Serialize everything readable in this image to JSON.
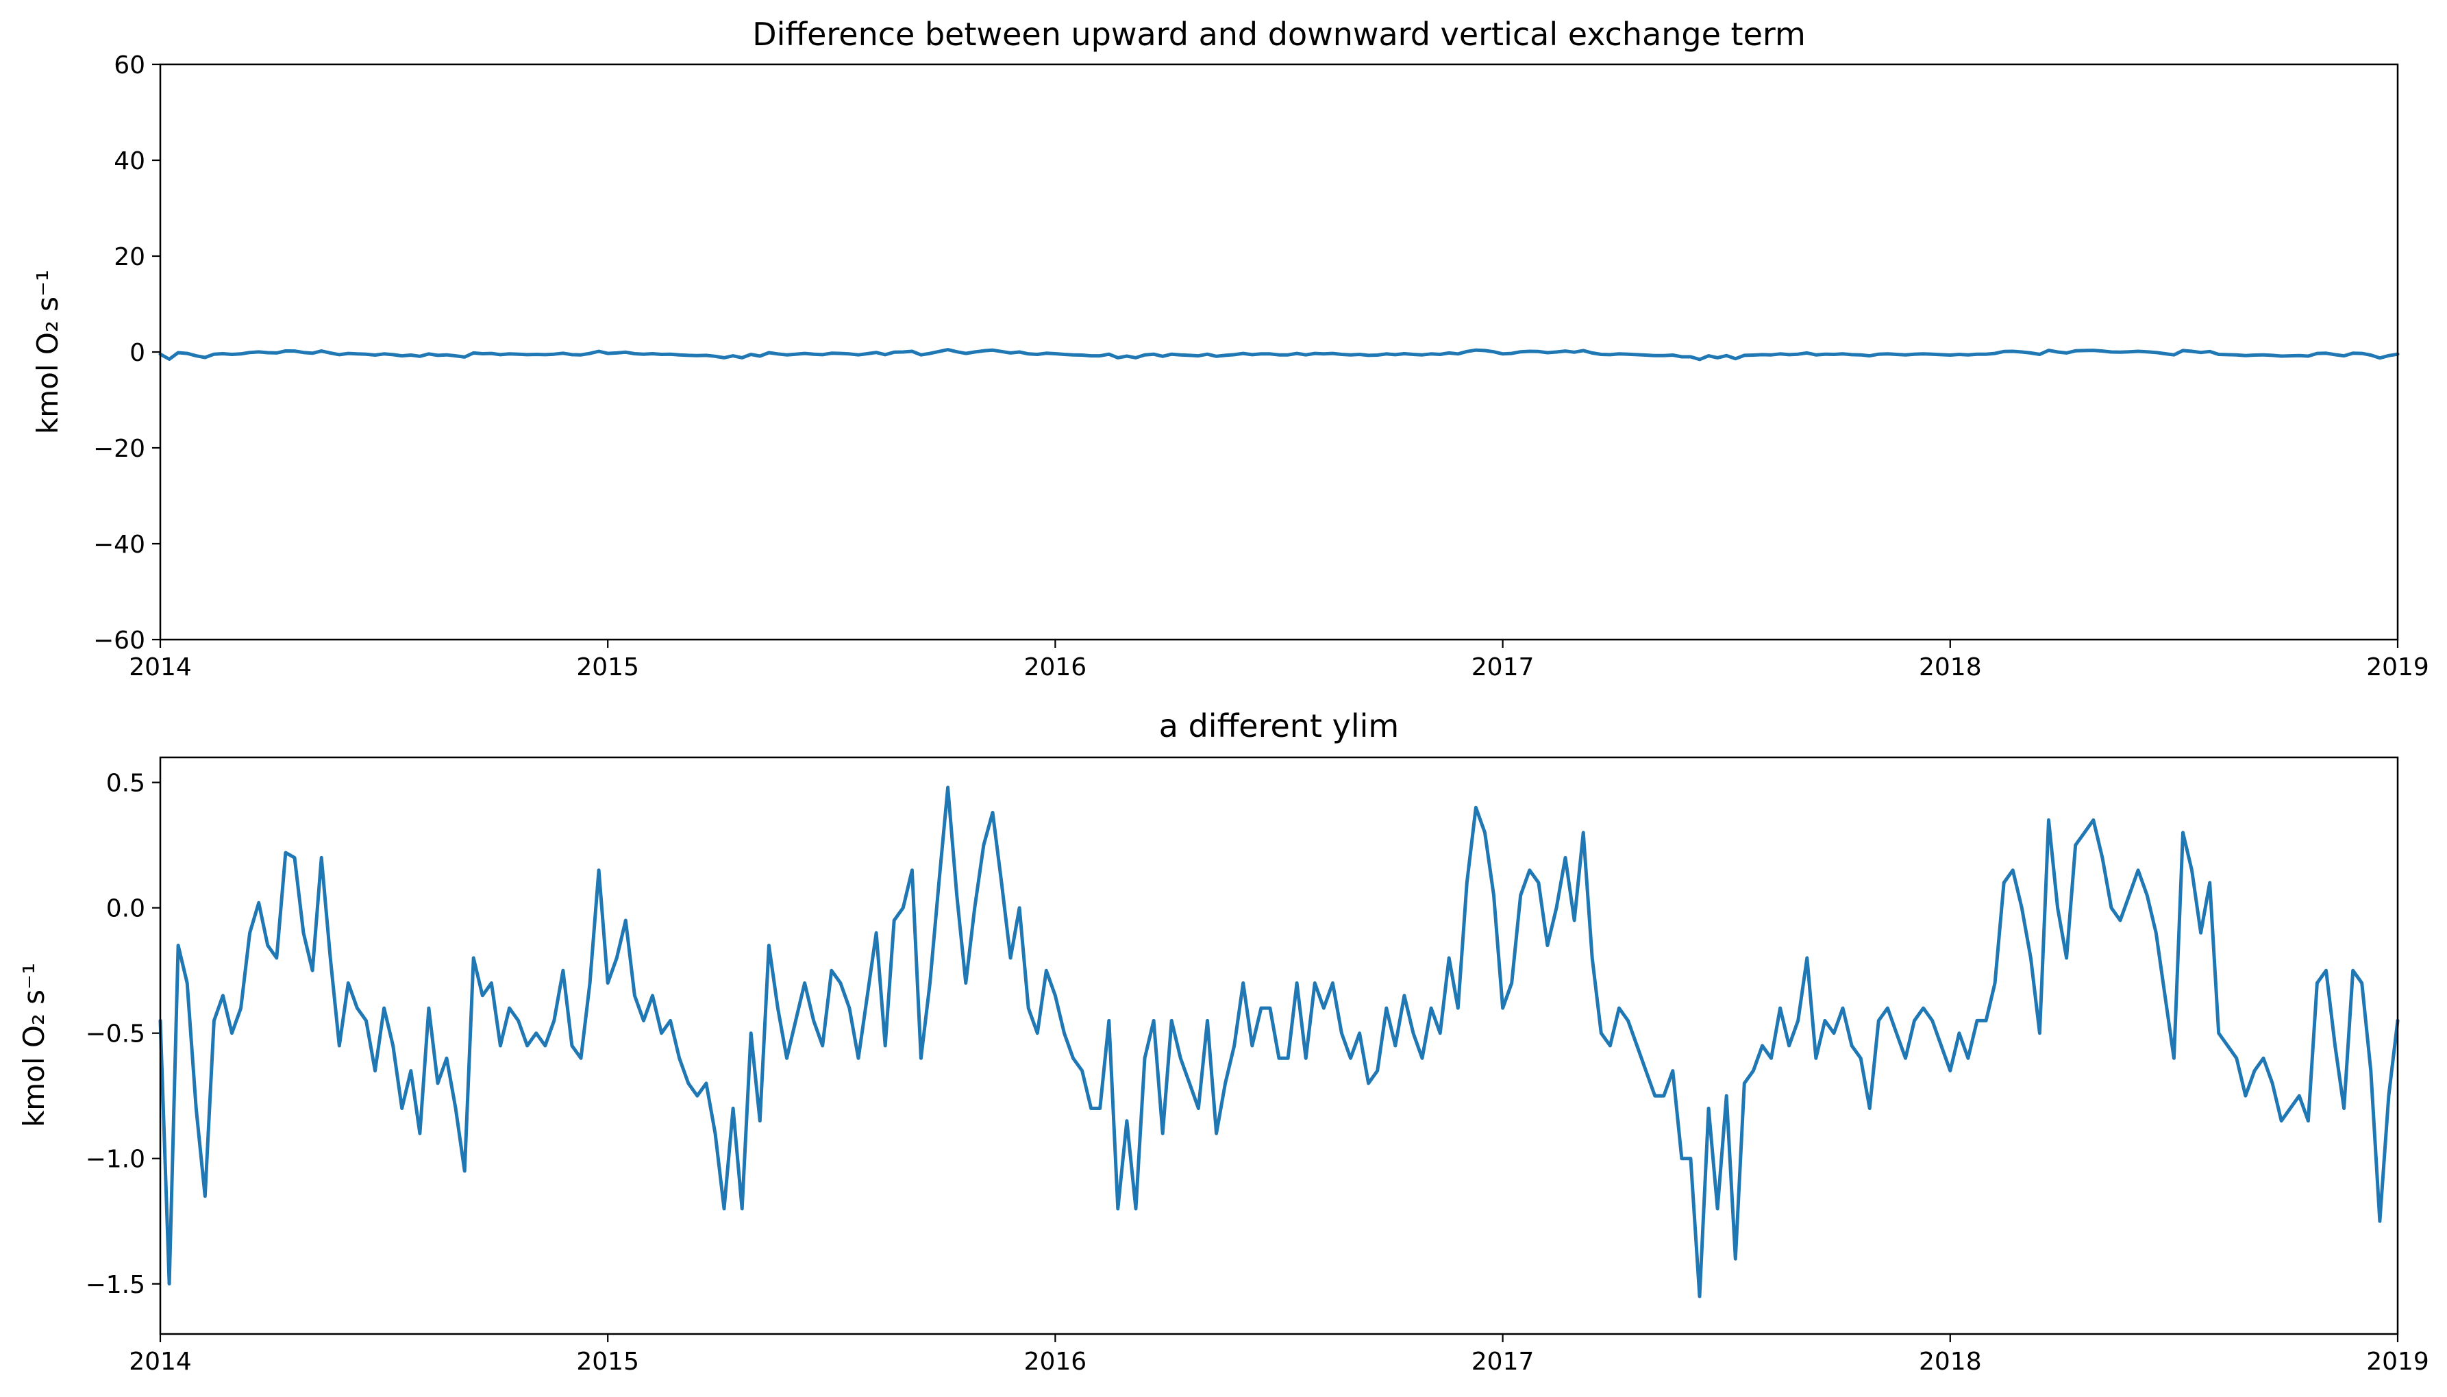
{
  "figure": {
    "panels": [
      "top_panel",
      "bottom_panel"
    ]
  },
  "chart_data": [
    {
      "type": "line",
      "title": "Difference between upward and downward vertical exchange term",
      "ylabel": "kmol O₂ s⁻¹",
      "xlabel": "",
      "xlim": [
        2014,
        2019
      ],
      "ylim": [
        -60,
        60
      ],
      "x_ticks": [
        2014,
        2015,
        2016,
        2017,
        2018,
        2019
      ],
      "x_tick_labels": [
        "2014",
        "2015",
        "2016",
        "2017",
        "2018",
        "2019"
      ],
      "y_ticks": [
        -60,
        -40,
        -20,
        0,
        20,
        40,
        60
      ],
      "y_tick_labels": [
        "−60",
        "−40",
        "−20",
        "0",
        "20",
        "40",
        "60"
      ],
      "grid": false,
      "color": "#1f77b4",
      "series_ref": "shared",
      "x": [
        2014.0,
        2014.02,
        2014.04,
        2014.06,
        2014.08,
        2014.1,
        2014.12,
        2014.14,
        2014.16,
        2014.18,
        2014.2,
        2014.22,
        2014.24,
        2014.26,
        2014.28,
        2014.3,
        2014.32,
        2014.34,
        2014.36,
        2014.38,
        2014.4,
        2014.42,
        2014.44,
        2014.46,
        2014.48,
        2014.5,
        2014.52,
        2014.54,
        2014.56,
        2014.58,
        2014.6,
        2014.62,
        2014.64,
        2014.66,
        2014.68,
        2014.7,
        2014.72,
        2014.74,
        2014.76,
        2014.78,
        2014.8,
        2014.82,
        2014.84,
        2014.86,
        2014.88,
        2014.9,
        2014.92,
        2014.94,
        2014.96,
        2014.98,
        2015.0,
        2015.02,
        2015.04,
        2015.06,
        2015.08,
        2015.1,
        2015.12,
        2015.14,
        2015.16,
        2015.18,
        2015.2,
        2015.22,
        2015.24,
        2015.26,
        2015.28,
        2015.3,
        2015.32,
        2015.34,
        2015.36,
        2015.38,
        2015.4,
        2015.42,
        2015.44,
        2015.46,
        2015.48,
        2015.5,
        2015.52,
        2015.54,
        2015.56,
        2015.58,
        2015.6,
        2015.62,
        2015.64,
        2015.66,
        2015.68,
        2015.7,
        2015.72,
        2015.74,
        2015.76,
        2015.78,
        2015.8,
        2015.82,
        2015.84,
        2015.86,
        2015.88,
        2015.9,
        2015.92,
        2015.94,
        2015.96,
        2015.98,
        2016.0,
        2016.02,
        2016.04,
        2016.06,
        2016.08,
        2016.1,
        2016.12,
        2016.14,
        2016.16,
        2016.18,
        2016.2,
        2016.22,
        2016.24,
        2016.26,
        2016.28,
        2016.3,
        2016.32,
        2016.34,
        2016.36,
        2016.38,
        2016.4,
        2016.42,
        2016.44,
        2016.46,
        2016.48,
        2016.5,
        2016.52,
        2016.54,
        2016.56,
        2016.58,
        2016.6,
        2016.62,
        2016.64,
        2016.66,
        2016.68,
        2016.7,
        2016.72,
        2016.74,
        2016.76,
        2016.78,
        2016.8,
        2016.82,
        2016.84,
        2016.86,
        2016.88,
        2016.9,
        2016.92,
        2016.94,
        2016.96,
        2016.98,
        2017.0,
        2017.02,
        2017.04,
        2017.06,
        2017.08,
        2017.1,
        2017.12,
        2017.14,
        2017.16,
        2017.18,
        2017.2,
        2017.22,
        2017.24,
        2017.26,
        2017.28,
        2017.3,
        2017.32,
        2017.34,
        2017.36,
        2017.38,
        2017.4,
        2017.42,
        2017.44,
        2017.46,
        2017.48,
        2017.5,
        2017.52,
        2017.54,
        2017.56,
        2017.58,
        2017.6,
        2017.62,
        2017.64,
        2017.66,
        2017.68,
        2017.7,
        2017.72,
        2017.74,
        2017.76,
        2017.78,
        2017.8,
        2017.82,
        2017.84,
        2017.86,
        2017.88,
        2017.9,
        2017.92,
        2017.94,
        2017.96,
        2017.98,
        2018.0,
        2018.02,
        2018.04,
        2018.06,
        2018.08,
        2018.1,
        2018.12,
        2018.14,
        2018.16,
        2018.18,
        2018.2,
        2018.22,
        2018.24,
        2018.26,
        2018.28,
        2018.3,
        2018.32,
        2018.34,
        2018.36,
        2018.38,
        2018.4,
        2018.42,
        2018.44,
        2018.46,
        2018.48,
        2018.5,
        2018.52,
        2018.54,
        2018.56,
        2018.58,
        2018.6,
        2018.62,
        2018.64,
        2018.66,
        2018.68,
        2018.7,
        2018.72,
        2018.74,
        2018.76,
        2018.78,
        2018.8,
        2018.82,
        2018.84,
        2018.86,
        2018.88,
        2018.9,
        2018.92,
        2018.94,
        2018.96,
        2018.98,
        2019.0
      ],
      "y": [
        -0.45,
        -1.5,
        -0.15,
        -0.3,
        -0.8,
        -1.15,
        -0.45,
        -0.35,
        -0.5,
        -0.4,
        -0.1,
        0.02,
        -0.15,
        -0.2,
        0.22,
        0.2,
        -0.1,
        -0.25,
        0.2,
        -0.2,
        -0.55,
        -0.3,
        -0.4,
        -0.45,
        -0.65,
        -0.4,
        -0.55,
        -0.8,
        -0.65,
        -0.9,
        -0.4,
        -0.7,
        -0.6,
        -0.8,
        -1.05,
        -0.2,
        -0.35,
        -0.3,
        -0.55,
        -0.4,
        -0.45,
        -0.55,
        -0.5,
        -0.55,
        -0.45,
        -0.25,
        -0.55,
        -0.6,
        -0.3,
        0.15,
        -0.3,
        -0.2,
        -0.05,
        -0.35,
        -0.45,
        -0.35,
        -0.5,
        -0.45,
        -0.6,
        -0.7,
        -0.75,
        -0.7,
        -0.9,
        -1.2,
        -0.8,
        -1.2,
        -0.5,
        -0.85,
        -0.15,
        -0.4,
        -0.6,
        -0.45,
        -0.3,
        -0.45,
        -0.55,
        -0.25,
        -0.3,
        -0.4,
        -0.6,
        -0.35,
        -0.1,
        -0.55,
        -0.05,
        0.0,
        0.15,
        -0.6,
        -0.3,
        0.1,
        0.48,
        0.05,
        -0.3,
        0.0,
        0.25,
        0.38,
        0.1,
        -0.2,
        0.0,
        -0.4,
        -0.5,
        -0.25,
        -0.35,
        -0.5,
        -0.6,
        -0.65,
        -0.8,
        -0.8,
        -0.45,
        -1.2,
        -0.85,
        -1.2,
        -0.6,
        -0.45,
        -0.9,
        -0.45,
        -0.6,
        -0.7,
        -0.8,
        -0.45,
        -0.9,
        -0.7,
        -0.55,
        -0.3,
        -0.55,
        -0.4,
        -0.4,
        -0.6,
        -0.6,
        -0.3,
        -0.6,
        -0.3,
        -0.4,
        -0.3,
        -0.5,
        -0.6,
        -0.5,
        -0.7,
        -0.65,
        -0.4,
        -0.55,
        -0.35,
        -0.5,
        -0.6,
        -0.4,
        -0.5,
        -0.2,
        -0.4,
        0.1,
        0.4,
        0.3,
        0.05,
        -0.4,
        -0.3,
        0.05,
        0.15,
        0.1,
        -0.15,
        0.0,
        0.2,
        -0.05,
        0.3,
        -0.2,
        -0.5,
        -0.55,
        -0.4,
        -0.45,
        -0.55,
        -0.65,
        -0.75,
        -0.75,
        -0.65,
        -1.0,
        -1.0,
        -1.55,
        -0.8,
        -1.2,
        -0.75,
        -1.4,
        -0.7,
        -0.65,
        -0.55,
        -0.6,
        -0.4,
        -0.55,
        -0.45,
        -0.2,
        -0.6,
        -0.45,
        -0.5,
        -0.4,
        -0.55,
        -0.6,
        -0.8,
        -0.45,
        -0.4,
        -0.5,
        -0.6,
        -0.45,
        -0.4,
        -0.45,
        -0.55,
        -0.65,
        -0.5,
        -0.6,
        -0.45,
        -0.45,
        -0.3,
        0.1,
        0.15,
        0.0,
        -0.2,
        -0.5,
        0.35,
        0.0,
        -0.2,
        0.25,
        0.3,
        0.35,
        0.2,
        0.0,
        -0.05,
        0.05,
        0.15,
        0.05,
        -0.1,
        -0.35,
        -0.6,
        0.3,
        0.15,
        -0.1,
        0.1,
        -0.5,
        -0.55,
        -0.6,
        -0.75,
        -0.65,
        -0.6,
        -0.7,
        -0.85,
        -0.8,
        -0.75,
        -0.85,
        -0.3,
        -0.25,
        -0.55,
        -0.8,
        -0.25,
        -0.3,
        -0.65,
        -1.25,
        -0.75,
        -0.45
      ]
    },
    {
      "type": "line",
      "title": "a different ylim",
      "ylabel": "kmol O₂ s⁻¹",
      "xlabel": "",
      "xlim": [
        2014,
        2019
      ],
      "ylim": [
        -1.7,
        0.6
      ],
      "x_ticks": [
        2014,
        2015,
        2016,
        2017,
        2018,
        2019
      ],
      "x_tick_labels": [
        "2014",
        "2015",
        "2016",
        "2017",
        "2018",
        "2019"
      ],
      "y_ticks": [
        -1.5,
        -1.0,
        -0.5,
        0.0,
        0.5
      ],
      "y_tick_labels": [
        "−1.5",
        "−1.0",
        "−0.5",
        "0.0",
        "0.5"
      ],
      "grid": false,
      "color": "#1f77b4",
      "series_ref": "shared"
    }
  ]
}
